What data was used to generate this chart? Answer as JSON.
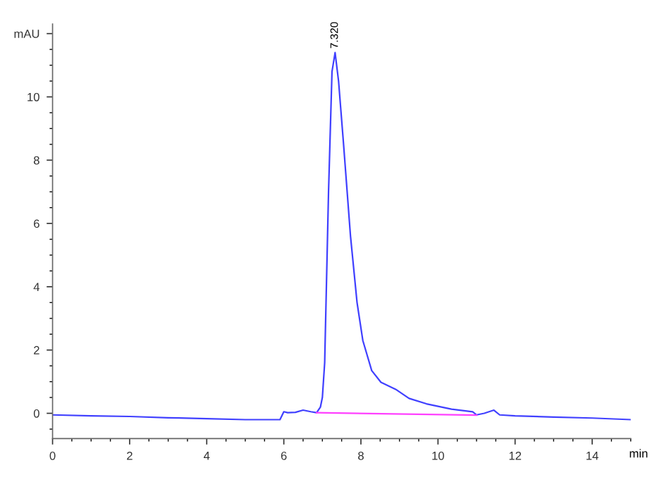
{
  "chart_data": {
    "type": "line",
    "xlabel": "min",
    "series": [
      {
        "color": "#4040ff",
        "x": [
          0,
          1,
          2,
          3,
          4,
          5,
          5.9,
          6.0,
          6.1,
          6.3,
          6.5,
          6.7,
          6.85,
          6.95,
          7.0,
          7.06,
          7.16,
          7.25,
          7.33,
          7.42,
          7.55,
          7.73,
          7.9,
          8.05,
          8.28,
          8.52,
          8.9,
          9.25,
          9.7,
          10.35,
          10.9,
          11.0,
          11.2,
          11.45,
          11.6,
          12,
          13,
          14,
          15
        ],
        "values": [
          -0.05,
          -0.08,
          -0.1,
          -0.14,
          -0.17,
          -0.2,
          -0.2,
          0.05,
          0.02,
          0.03,
          0.1,
          0.05,
          0.02,
          0.2,
          0.5,
          1.6,
          7,
          10.8,
          11.4,
          10.5,
          8.5,
          5.6,
          3.5,
          2.3,
          1.35,
          0.98,
          0.76,
          0.47,
          0.3,
          0.13,
          0.05,
          -0.05,
          0.0,
          0.1,
          -0.05,
          -0.08,
          -0.12,
          -0.15,
          -0.2
        ]
      },
      {
        "color": "#ff40ff",
        "x": [
          6.85,
          11.0
        ],
        "values": [
          0.02,
          -0.06
        ]
      }
    ],
    "xlim": [
      0,
      15
    ],
    "ylim": [
      -0.8,
      12.3
    ],
    "xticks": [
      0,
      2,
      4,
      6,
      8,
      10,
      12,
      14
    ],
    "yticks": [
      0,
      2,
      4,
      6,
      8,
      10,
      {
        "value": 12,
        "label": "mAU"
      }
    ],
    "annotations": [
      {
        "text": "7.320",
        "x": 7.33,
        "y": 11.4
      }
    ],
    "grid": false,
    "legend": false
  }
}
